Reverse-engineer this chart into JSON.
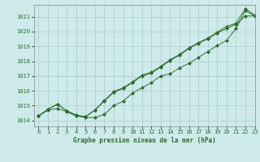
{
  "title": "Graphe pression niveau de la mer (hPa)",
  "background_color": "#ceeaea",
  "grid_color": "#aacccc",
  "line_color": "#2d6e2d",
  "xlim": [
    -0.5,
    23
  ],
  "ylim": [
    1013.6,
    1021.8
  ],
  "yticks": [
    1014,
    1015,
    1016,
    1017,
    1018,
    1019,
    1020,
    1021
  ],
  "xticks": [
    0,
    1,
    2,
    3,
    4,
    5,
    6,
    7,
    8,
    9,
    10,
    11,
    12,
    13,
    14,
    15,
    16,
    17,
    18,
    19,
    20,
    21,
    22,
    23
  ],
  "series1": [
    1014.3,
    1014.7,
    1014.8,
    1014.6,
    1014.3,
    1014.2,
    1014.2,
    1014.4,
    1015.0,
    1015.3,
    1015.85,
    1016.2,
    1016.55,
    1017.0,
    1017.15,
    1017.55,
    1017.85,
    1018.25,
    1018.65,
    1019.05,
    1019.4,
    1020.2,
    1021.4,
    1021.05
  ],
  "series2": [
    1014.3,
    1014.75,
    1015.1,
    1014.65,
    1014.35,
    1014.25,
    1014.7,
    1015.3,
    1015.9,
    1016.15,
    1016.55,
    1017.0,
    1017.2,
    1017.6,
    1018.05,
    1018.4,
    1018.85,
    1019.2,
    1019.5,
    1019.9,
    1020.2,
    1020.5,
    1021.05,
    1021.05
  ],
  "series3": [
    1014.3,
    1014.75,
    1015.1,
    1014.65,
    1014.35,
    1014.25,
    1014.7,
    1015.35,
    1015.95,
    1016.2,
    1016.6,
    1017.05,
    1017.25,
    1017.65,
    1018.1,
    1018.45,
    1018.9,
    1019.25,
    1019.55,
    1019.95,
    1020.35,
    1020.55,
    1021.55,
    1021.1
  ],
  "ylabel_fontsize": 5.5,
  "tick_fontsize": 5.0
}
